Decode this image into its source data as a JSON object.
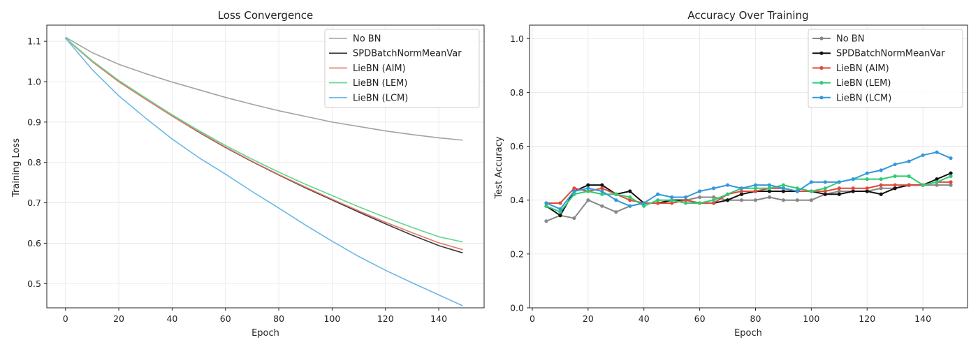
{
  "colors": {
    "no_bn": "#a3a3a3",
    "spd": "#3a3a3a",
    "aim": "#e8776b",
    "lem": "#62d68b",
    "lcm": "#6bb8e6",
    "no_bn_acc": "#888888",
    "spd_acc": "#111111",
    "aim_acc": "#e04a3a",
    "lem_acc": "#2ecc71",
    "lcm_acc": "#3498db",
    "grid": "#e6e6e6",
    "axis": "#222222"
  },
  "chart_data": [
    {
      "type": "line",
      "title": "Loss Convergence",
      "xlabel": "Epoch",
      "ylabel": "Training Loss",
      "xlim": [
        -7,
        157
      ],
      "ylim": [
        0.44,
        1.14
      ],
      "xticks": [
        0,
        20,
        40,
        60,
        80,
        100,
        120,
        140
      ],
      "yticks": [
        0.5,
        0.6,
        0.7,
        0.8,
        0.9,
        1.0,
        1.1
      ],
      "grid": true,
      "legend_position": "top-right",
      "x": [
        0,
        10,
        20,
        30,
        40,
        50,
        60,
        70,
        80,
        90,
        100,
        110,
        120,
        130,
        140,
        149
      ],
      "series": [
        {
          "name": "No BN",
          "color_key": "no_bn",
          "values": [
            1.11,
            1.072,
            1.043,
            1.02,
            0.999,
            0.98,
            0.961,
            0.944,
            0.928,
            0.914,
            0.9,
            0.889,
            0.878,
            0.869,
            0.861,
            0.855
          ]
        },
        {
          "name": "SPDBatchNormMeanVar",
          "color_key": "spd",
          "values": [
            1.108,
            1.05,
            1.0,
            0.957,
            0.915,
            0.875,
            0.837,
            0.802,
            0.769,
            0.737,
            0.707,
            0.677,
            0.648,
            0.62,
            0.594,
            0.576
          ]
        },
        {
          "name": "LieBN (AIM)",
          "color_key": "aim",
          "values": [
            1.108,
            1.05,
            1.0,
            0.957,
            0.915,
            0.876,
            0.838,
            0.803,
            0.77,
            0.739,
            0.709,
            0.68,
            0.652,
            0.626,
            0.601,
            0.584
          ]
        },
        {
          "name": "LieBN (LEM)",
          "color_key": "lem",
          "values": [
            1.108,
            1.052,
            1.003,
            0.96,
            0.918,
            0.879,
            0.842,
            0.808,
            0.776,
            0.746,
            0.718,
            0.69,
            0.664,
            0.639,
            0.616,
            0.603
          ]
        },
        {
          "name": "LieBN (LCM)",
          "color_key": "lcm",
          "values": [
            1.108,
            1.03,
            0.965,
            0.91,
            0.858,
            0.812,
            0.771,
            0.728,
            0.687,
            0.645,
            0.605,
            0.567,
            0.533,
            0.502,
            0.472,
            0.445
          ]
        }
      ]
    },
    {
      "type": "line",
      "title": "Accuracy Over Training",
      "xlabel": "Epoch",
      "ylabel": "Test Accuracy",
      "xlim": [
        -1,
        156
      ],
      "ylim": [
        0.0,
        1.05
      ],
      "xticks": [
        0,
        20,
        40,
        60,
        80,
        100,
        120,
        140
      ],
      "yticks": [
        0.0,
        0.2,
        0.4,
        0.6,
        0.8,
        1.0
      ],
      "grid": true,
      "legend_position": "top-right",
      "markers": true,
      "x": [
        5,
        10,
        15,
        20,
        25,
        30,
        35,
        40,
        45,
        50,
        55,
        60,
        65,
        70,
        75,
        80,
        85,
        90,
        95,
        100,
        105,
        110,
        115,
        120,
        125,
        130,
        135,
        140,
        145,
        150
      ],
      "series": [
        {
          "name": "No BN",
          "color_key": "no_bn_acc",
          "values": [
            0.322,
            0.343,
            0.333,
            0.4,
            0.378,
            0.356,
            0.378,
            0.389,
            0.389,
            0.4,
            0.4,
            0.411,
            0.411,
            0.4,
            0.4,
            0.4,
            0.411,
            0.4,
            0.4,
            0.4,
            0.422,
            0.433,
            0.433,
            0.433,
            0.444,
            0.444,
            0.456,
            0.456,
            0.456,
            0.456
          ]
        },
        {
          "name": "SPDBatchNormMeanVar",
          "color_key": "spd_acc",
          "values": [
            0.378,
            0.343,
            0.433,
            0.456,
            0.456,
            0.422,
            0.433,
            0.389,
            0.389,
            0.4,
            0.4,
            0.389,
            0.389,
            0.4,
            0.422,
            0.433,
            0.433,
            0.433,
            0.433,
            0.433,
            0.422,
            0.422,
            0.433,
            0.433,
            0.422,
            0.444,
            0.456,
            0.456,
            0.478,
            0.5
          ]
        },
        {
          "name": "LieBN (AIM)",
          "color_key": "aim_acc",
          "values": [
            0.389,
            0.389,
            0.444,
            0.433,
            0.444,
            0.422,
            0.4,
            0.389,
            0.389,
            0.389,
            0.4,
            0.389,
            0.389,
            0.422,
            0.433,
            0.433,
            0.444,
            0.444,
            0.433,
            0.433,
            0.433,
            0.444,
            0.444,
            0.444,
            0.456,
            0.456,
            0.456,
            0.456,
            0.467,
            0.467
          ]
        },
        {
          "name": "LieBN (LEM)",
          "color_key": "lem_acc",
          "values": [
            0.378,
            0.356,
            0.422,
            0.433,
            0.422,
            0.422,
            0.411,
            0.378,
            0.4,
            0.4,
            0.389,
            0.389,
            0.4,
            0.422,
            0.444,
            0.444,
            0.444,
            0.456,
            0.444,
            0.433,
            0.444,
            0.467,
            0.478,
            0.478,
            0.478,
            0.489,
            0.489,
            0.456,
            0.467,
            0.489
          ]
        },
        {
          "name": "LieBN (LCM)",
          "color_key": "lcm_acc",
          "values": [
            0.389,
            0.367,
            0.433,
            0.444,
            0.433,
            0.4,
            0.378,
            0.389,
            0.422,
            0.411,
            0.411,
            0.433,
            0.444,
            0.456,
            0.444,
            0.456,
            0.456,
            0.444,
            0.433,
            0.467,
            0.467,
            0.467,
            0.478,
            0.5,
            0.511,
            0.533,
            0.544,
            0.567,
            0.578,
            0.556
          ]
        }
      ]
    }
  ]
}
